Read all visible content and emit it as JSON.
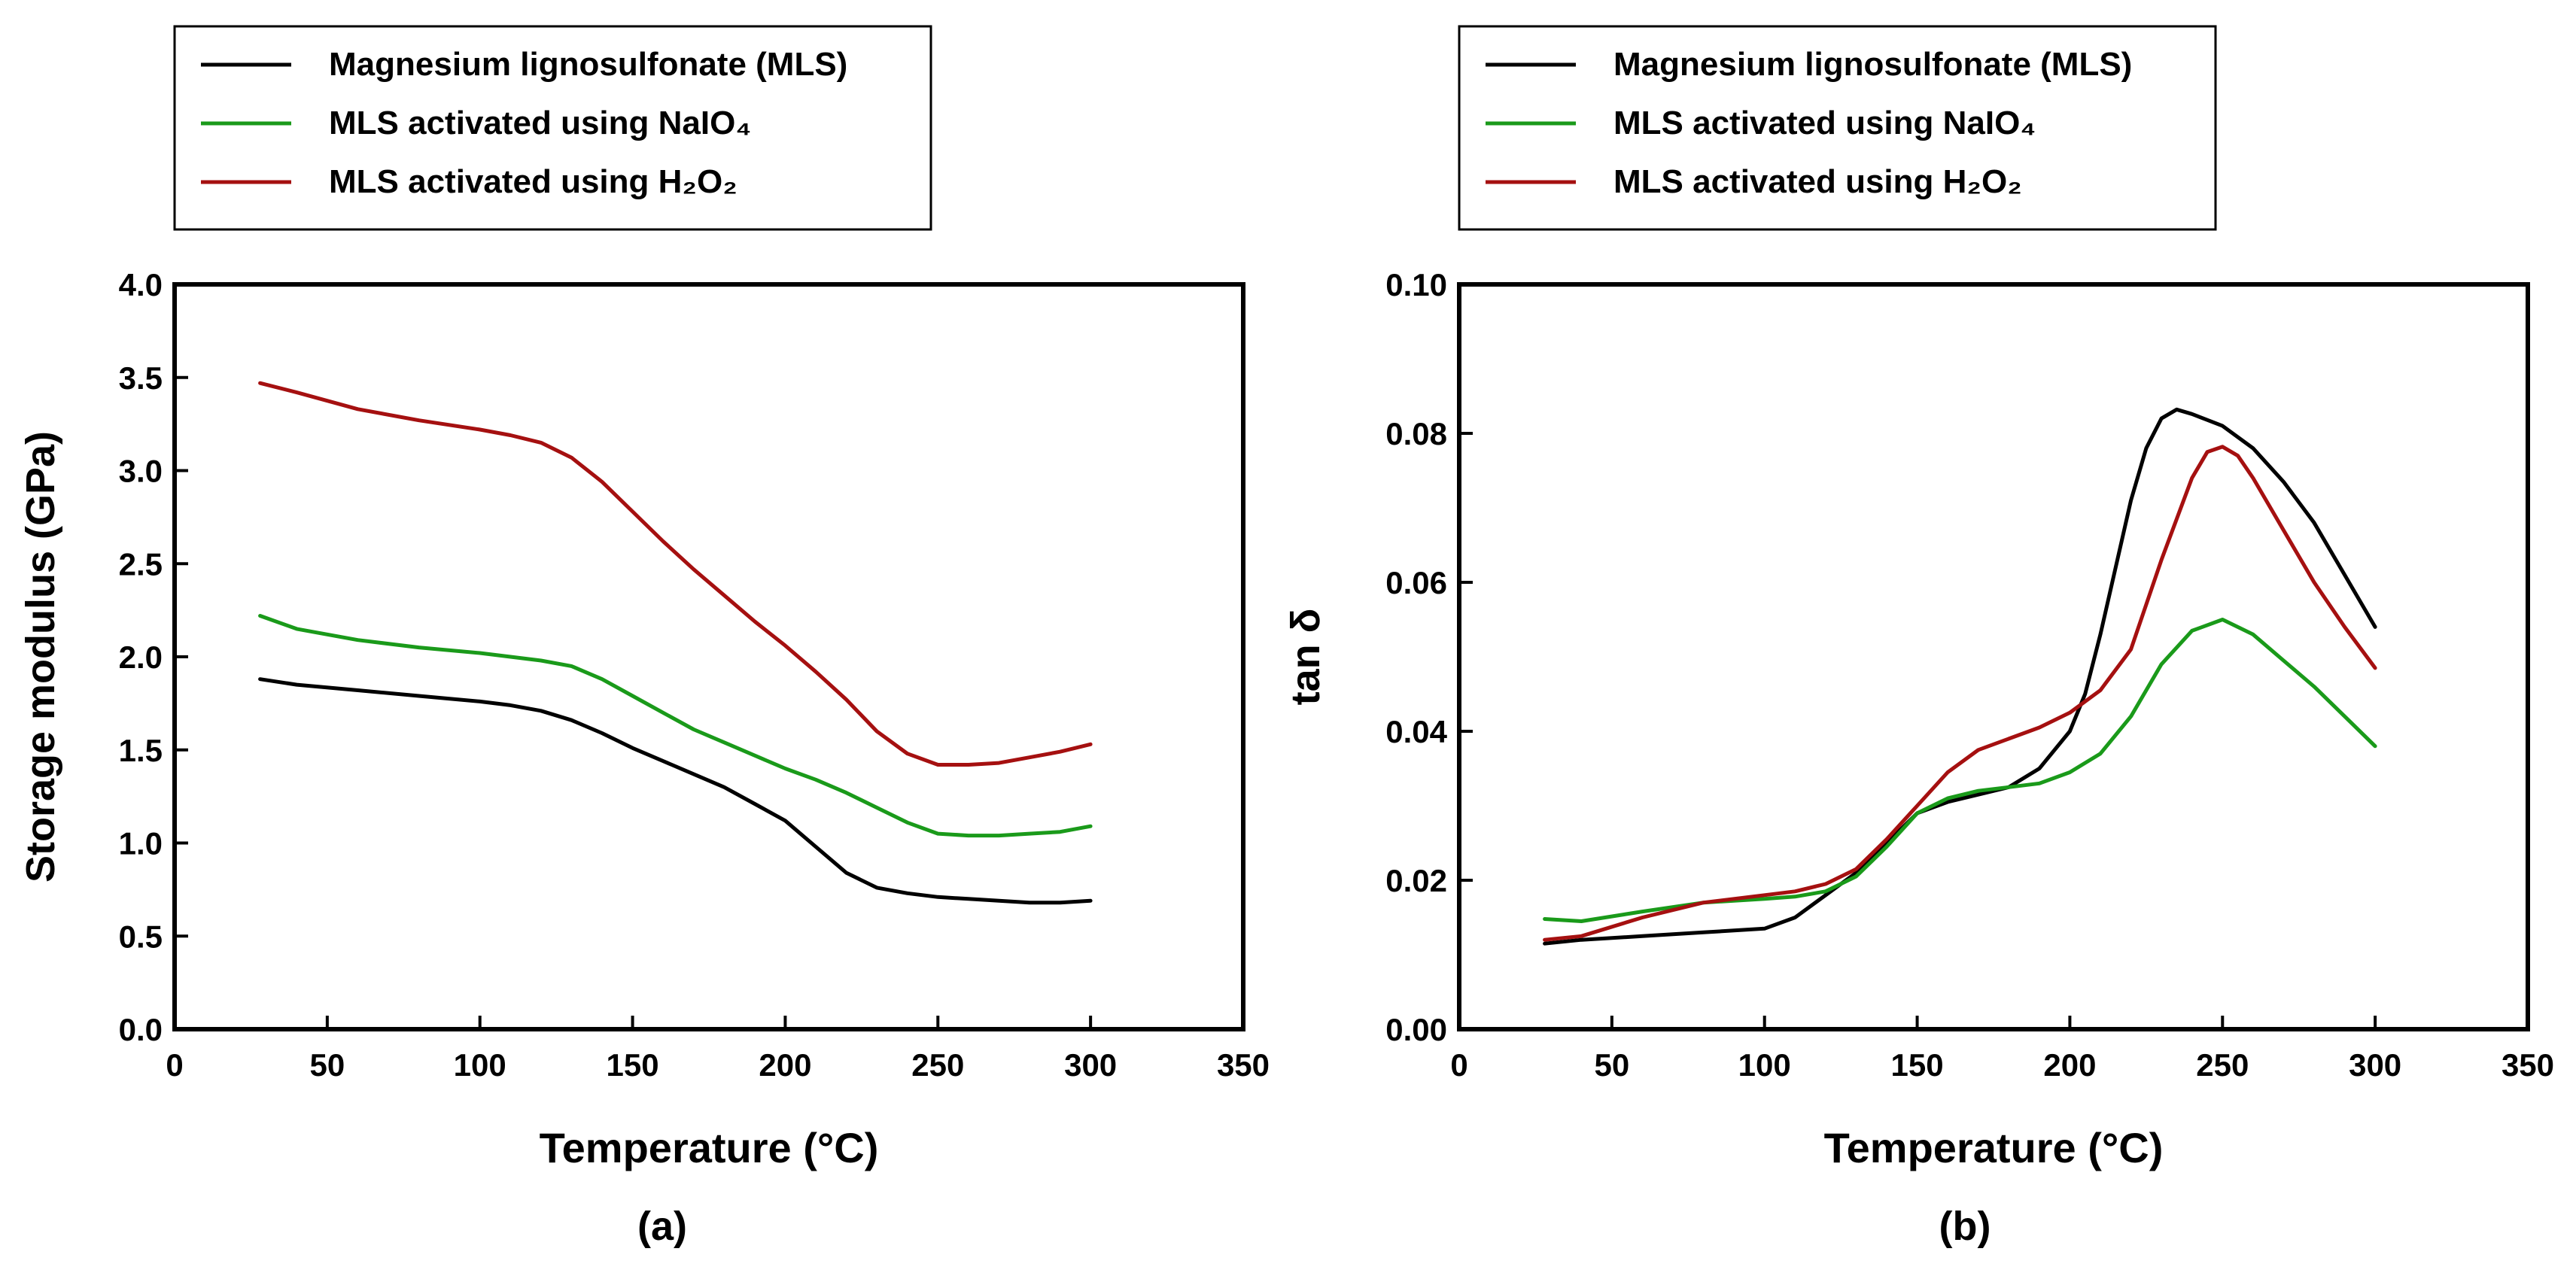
{
  "colors": {
    "mls": "#000000",
    "naio4": "#1a9a1a",
    "h2o2": "#a51010",
    "axis": "#000000"
  },
  "chart_data": [
    {
      "type": "line",
      "panel_label": "(a)",
      "xlabel": "Temperature (°C)",
      "ylabel": "Storage modulus (GPa)",
      "xlim": [
        0,
        350
      ],
      "ylim": [
        0,
        4.0
      ],
      "xticks": [
        0,
        50,
        100,
        150,
        200,
        250,
        300,
        350
      ],
      "yticks": [
        "0.0",
        "0.5",
        "1.0",
        "1.5",
        "2.0",
        "2.5",
        "3.0",
        "3.5",
        "4.0"
      ],
      "legend_position": "top-left, above plot",
      "series": [
        {
          "name": "Magnesium lignosulfonate (MLS)",
          "color_key": "mls",
          "x": [
            28,
            40,
            60,
            80,
            100,
            110,
            120,
            130,
            140,
            150,
            160,
            170,
            180,
            190,
            200,
            210,
            220,
            230,
            240,
            250,
            260,
            270,
            280,
            290,
            300
          ],
          "y": [
            1.88,
            1.85,
            1.82,
            1.79,
            1.76,
            1.74,
            1.71,
            1.66,
            1.59,
            1.51,
            1.44,
            1.37,
            1.3,
            1.21,
            1.12,
            0.98,
            0.84,
            0.76,
            0.73,
            0.71,
            0.7,
            0.69,
            0.68,
            0.68,
            0.69
          ]
        },
        {
          "name": "MLS activated using NaIO₄",
          "color_key": "naio4",
          "x": [
            28,
            40,
            60,
            80,
            100,
            110,
            120,
            130,
            140,
            150,
            160,
            170,
            180,
            190,
            200,
            210,
            220,
            230,
            240,
            250,
            260,
            270,
            280,
            290,
            300
          ],
          "y": [
            2.22,
            2.15,
            2.09,
            2.05,
            2.02,
            2.0,
            1.98,
            1.95,
            1.88,
            1.79,
            1.7,
            1.61,
            1.54,
            1.47,
            1.4,
            1.34,
            1.27,
            1.19,
            1.11,
            1.05,
            1.04,
            1.04,
            1.05,
            1.06,
            1.09
          ]
        },
        {
          "name": "MLS activated using H₂O₂",
          "color_key": "h2o2",
          "x": [
            28,
            40,
            60,
            80,
            100,
            110,
            120,
            130,
            140,
            150,
            160,
            170,
            180,
            190,
            200,
            210,
            220,
            230,
            240,
            250,
            260,
            270,
            280,
            290,
            300
          ],
          "y": [
            3.47,
            3.42,
            3.33,
            3.27,
            3.22,
            3.19,
            3.15,
            3.07,
            2.94,
            2.78,
            2.62,
            2.47,
            2.33,
            2.19,
            2.06,
            1.92,
            1.77,
            1.6,
            1.48,
            1.42,
            1.42,
            1.43,
            1.46,
            1.49,
            1.53
          ]
        }
      ]
    },
    {
      "type": "line",
      "panel_label": "(b)",
      "xlabel": "Temperature (°C)",
      "ylabel": "tan δ",
      "xlim": [
        0,
        350
      ],
      "ylim": [
        0,
        0.1
      ],
      "xticks": [
        0,
        50,
        100,
        150,
        200,
        250,
        300,
        350
      ],
      "yticks": [
        "0.00",
        "0.02",
        "0.04",
        "0.06",
        "0.08",
        "0.10"
      ],
      "legend_position": "top-left, above plot",
      "series": [
        {
          "name": "Magnesium lignosulfonate (MLS)",
          "color_key": "mls",
          "x": [
            28,
            40,
            60,
            80,
            100,
            110,
            120,
            130,
            140,
            150,
            160,
            170,
            180,
            190,
            200,
            205,
            210,
            215,
            220,
            225,
            230,
            235,
            240,
            245,
            250,
            260,
            270,
            280,
            290,
            300
          ],
          "y": [
            0.0115,
            0.012,
            0.0125,
            0.013,
            0.0135,
            0.015,
            0.018,
            0.021,
            0.025,
            0.029,
            0.0305,
            0.0315,
            0.0325,
            0.035,
            0.04,
            0.045,
            0.053,
            0.062,
            0.071,
            0.078,
            0.082,
            0.0832,
            0.0826,
            0.0818,
            0.081,
            0.078,
            0.0735,
            0.068,
            0.061,
            0.054
          ]
        },
        {
          "name": "MLS activated using NaIO₄",
          "color_key": "naio4",
          "x": [
            28,
            40,
            60,
            80,
            100,
            110,
            120,
            130,
            140,
            150,
            160,
            170,
            180,
            190,
            200,
            210,
            220,
            230,
            240,
            250,
            260,
            270,
            280,
            290,
            300
          ],
          "y": [
            0.0148,
            0.0145,
            0.0158,
            0.017,
            0.0175,
            0.0178,
            0.0185,
            0.0205,
            0.0245,
            0.029,
            0.031,
            0.032,
            0.0325,
            0.033,
            0.0345,
            0.037,
            0.042,
            0.049,
            0.0535,
            0.055,
            0.053,
            0.0495,
            0.046,
            0.042,
            0.038
          ]
        },
        {
          "name": "MLS activated using H₂O₂",
          "color_key": "h2o2",
          "x": [
            28,
            40,
            60,
            80,
            100,
            110,
            120,
            130,
            140,
            150,
            160,
            170,
            180,
            190,
            200,
            210,
            220,
            230,
            240,
            245,
            250,
            255,
            260,
            270,
            280,
            290,
            300
          ],
          "y": [
            0.012,
            0.0125,
            0.015,
            0.017,
            0.018,
            0.0185,
            0.0195,
            0.0215,
            0.0255,
            0.03,
            0.0345,
            0.0375,
            0.039,
            0.0405,
            0.0425,
            0.0455,
            0.051,
            0.063,
            0.074,
            0.0775,
            0.0782,
            0.077,
            0.074,
            0.067,
            0.06,
            0.054,
            0.0485
          ]
        }
      ]
    }
  ]
}
